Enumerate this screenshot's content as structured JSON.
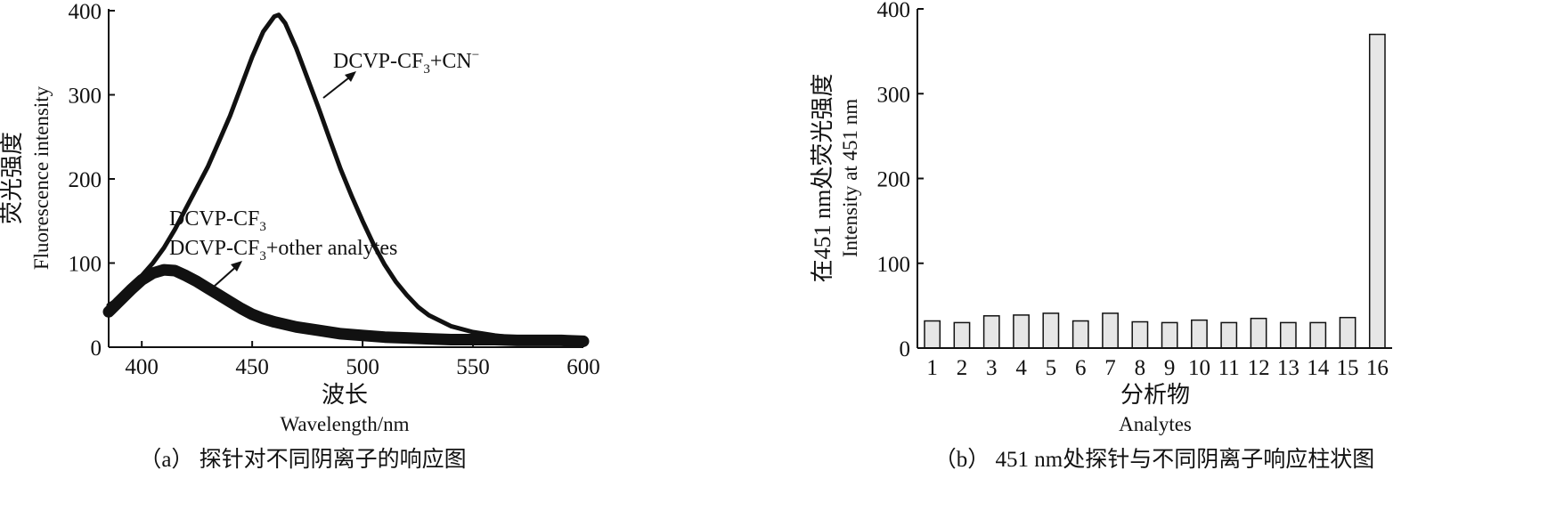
{
  "chart_data": [
    {
      "id": "a",
      "type": "line",
      "caption": "（a） 探针对不同阴离子的响应图",
      "xlabel_cn": "波长",
      "xlabel_en": "Wavelength/nm",
      "ylabel_cn": "荧光强度",
      "ylabel_en": "Fluorescence intensity",
      "xlim": [
        385,
        600
      ],
      "ylim": [
        0,
        400
      ],
      "xticks": [
        400,
        450,
        500,
        550,
        600
      ],
      "yticks": [
        0,
        100,
        200,
        300,
        400
      ],
      "annotations": {
        "cn_base": "DCVP-CF",
        "cn_sub": "3",
        "cn_mid": "+CN",
        "cn_sup": "−",
        "probe_base": "DCVP-CF",
        "probe_sub": "3",
        "other_base": "DCVP-CF",
        "other_sub": "3",
        "other_tail": "+other analytes"
      },
      "series": [
        {
          "x": [
            385,
            390,
            395,
            400,
            405,
            410,
            415,
            420,
            425,
            430,
            435,
            440,
            445,
            450,
            455,
            460,
            462,
            465,
            470,
            475,
            480,
            485,
            490,
            495,
            500,
            505,
            510,
            515,
            520,
            525,
            530,
            540,
            550,
            560,
            570,
            580,
            590,
            600
          ],
          "y": [
            50,
            58,
            70,
            85,
            100,
            118,
            140,
            165,
            190,
            215,
            245,
            275,
            310,
            345,
            375,
            393,
            395,
            385,
            355,
            320,
            285,
            248,
            212,
            180,
            150,
            122,
            98,
            78,
            62,
            48,
            38,
            25,
            18,
            14,
            11,
            9,
            8,
            7
          ]
        },
        {
          "x": [
            385,
            390,
            395,
            400,
            405,
            410,
            415,
            420,
            425,
            430,
            435,
            440,
            445,
            450,
            455,
            460,
            470,
            480,
            490,
            500,
            510,
            520,
            530,
            540,
            550,
            560,
            570,
            580,
            590,
            600
          ],
          "y": [
            42,
            55,
            68,
            80,
            88,
            92,
            91,
            85,
            78,
            70,
            62,
            54,
            46,
            39,
            34,
            30,
            24,
            20,
            16,
            14,
            12,
            11,
            10,
            9,
            9,
            9,
            8,
            8,
            8,
            7
          ]
        }
      ]
    },
    {
      "id": "b",
      "type": "bar",
      "caption": "（b） 451 nm处探针与不同阴离子响应柱状图",
      "xlabel_cn": "分析物",
      "xlabel_en": "Analytes",
      "ylabel_cn": "在451 nm处荧光强度",
      "ylabel_en": "Intensity at 451 nm",
      "ylim": [
        0,
        400
      ],
      "yticks": [
        0,
        100,
        200,
        300,
        400
      ],
      "categories": [
        "1",
        "2",
        "3",
        "4",
        "5",
        "6",
        "7",
        "8",
        "9",
        "10",
        "11",
        "12",
        "13",
        "14",
        "15",
        "16"
      ],
      "values": [
        32,
        30,
        38,
        39,
        41,
        32,
        41,
        31,
        30,
        33,
        30,
        35,
        30,
        30,
        36,
        370
      ],
      "bar_color": "#e6e6e6"
    }
  ]
}
